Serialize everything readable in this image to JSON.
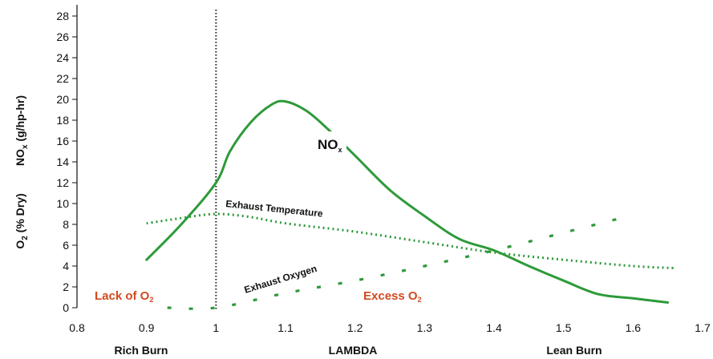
{
  "chart_data": {
    "type": "line",
    "xlabel": "LAMBDA",
    "ylabel_top": "NOx (g/hp-hr)",
    "ylabel_bottom": "O2 (% Dry)",
    "xlim": [
      0.8,
      1.7
    ],
    "ylim": [
      0,
      28
    ],
    "x_ticks": [
      0.8,
      0.9,
      1,
      1.1,
      1.2,
      1.3,
      1.4,
      1.5,
      1.6,
      1.7
    ],
    "x_tick_labels": [
      "0.8",
      "0.9",
      "1",
      "1.1",
      "1.2",
      "1.3",
      "1.4",
      "1.5",
      "1.6",
      "1.7"
    ],
    "y_ticks": [
      0,
      2,
      4,
      6,
      8,
      10,
      12,
      14,
      16,
      18,
      20,
      22,
      24,
      26,
      28
    ],
    "y_tick_labels": [
      "0",
      "2",
      "4",
      "6",
      "8",
      "10",
      "12",
      "14",
      "16",
      "18",
      "20",
      "22",
      "24",
      "26",
      "28"
    ],
    "stoichiometric_line_x": 1.0,
    "region_labels": {
      "rich": "Rich Burn",
      "lean": "Lean Burn"
    },
    "annotations": {
      "lack_o2": "Lack of O",
      "lack_o2_sub": "2",
      "excess_o2": "Excess O",
      "excess_o2_sub": "2"
    },
    "series": [
      {
        "name": "NO",
        "name_sub": "x",
        "style": "solid",
        "color": "#2e9a3a",
        "x": [
          0.9,
          0.95,
          1.0,
          1.02,
          1.05,
          1.08,
          1.1,
          1.13,
          1.16,
          1.2,
          1.25,
          1.3,
          1.35,
          1.4,
          1.45,
          1.5,
          1.55,
          1.6,
          1.65
        ],
        "y": [
          4.6,
          8.0,
          12.0,
          15.0,
          17.8,
          19.5,
          19.8,
          18.9,
          17.2,
          14.6,
          11.3,
          8.8,
          6.6,
          5.5,
          4.0,
          2.6,
          1.3,
          0.9,
          0.5
        ]
      },
      {
        "name": "Exhaust Temperature",
        "style": "dotted",
        "color": "#2e9a3a",
        "x": [
          0.9,
          0.95,
          1.0,
          1.05,
          1.1,
          1.2,
          1.3,
          1.4,
          1.5,
          1.6,
          1.66
        ],
        "y": [
          8.1,
          8.6,
          9.0,
          8.7,
          8.1,
          7.3,
          6.3,
          5.3,
          4.6,
          4.0,
          3.8
        ]
      },
      {
        "name": "Exhaust Oxygen",
        "style": "dashed",
        "color": "#2e9a3a",
        "x": [
          0.93,
          1.0,
          1.1,
          1.2,
          1.3,
          1.4,
          1.5,
          1.6
        ],
        "y": [
          0.0,
          0.0,
          1.4,
          2.6,
          4.0,
          5.5,
          7.2,
          8.9
        ]
      }
    ]
  }
}
